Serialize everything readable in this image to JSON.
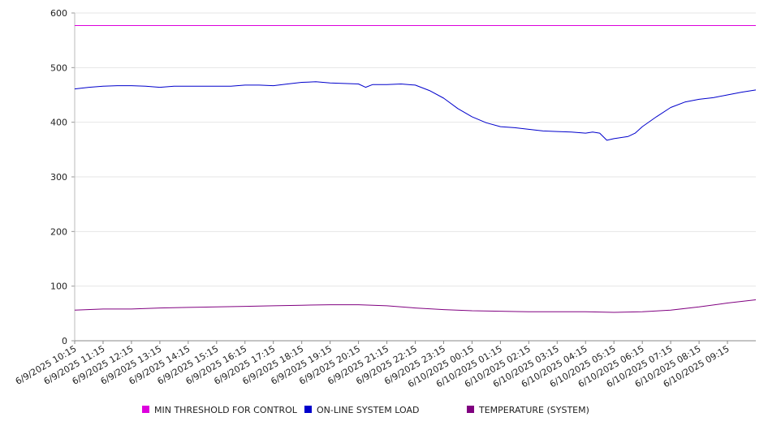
{
  "chart_data": {
    "type": "line",
    "title": "",
    "xlabel": "",
    "ylabel": "",
    "ylim": [
      0,
      600
    ],
    "yticks": [
      0,
      100,
      200,
      300,
      400,
      500,
      600
    ],
    "grid": "horizontal",
    "legend_position": "bottom",
    "xlim": [
      "6/9/2025 10:15",
      "6/10/2025 10:15"
    ],
    "x_tick_labels": [
      "6/9/2025 10:15",
      "6/9/2025 11:15",
      "6/9/2025 12:15",
      "6/9/2025 13:15",
      "6/9/2025 14:15",
      "6/9/2025 15:15",
      "6/9/2025 16:15",
      "6/9/2025 17:15",
      "6/9/2025 18:15",
      "6/9/2025 19:15",
      "6/9/2025 20:15",
      "6/9/2025 21:15",
      "6/9/2025 22:15",
      "6/9/2025 23:15",
      "6/10/2025 00:15",
      "6/10/2025 01:15",
      "6/10/2025 02:15",
      "6/10/2025 03:15",
      "6/10/2025 04:15",
      "6/10/2025 05:15",
      "6/10/2025 06:15",
      "6/10/2025 07:15",
      "6/10/2025 08:15",
      "6/10/2025 09:15"
    ],
    "series": [
      {
        "name": "MIN THRESHOLD FOR CONTROL",
        "color": "#dd00dd",
        "x": [
          "6/9/2025 10:15",
          "6/10/2025 10:15"
        ],
        "y": [
          577,
          577
        ]
      },
      {
        "name": "ON-LINE SYSTEM LOAD",
        "color": "#0000cc",
        "x": [
          "6/9/2025 10:15",
          "6/9/2025 10:45",
          "6/9/2025 11:15",
          "6/9/2025 11:45",
          "6/9/2025 12:15",
          "6/9/2025 12:45",
          "6/9/2025 13:15",
          "6/9/2025 13:45",
          "6/9/2025 14:15",
          "6/9/2025 14:45",
          "6/9/2025 15:15",
          "6/9/2025 15:45",
          "6/9/2025 16:15",
          "6/9/2025 16:45",
          "6/9/2025 17:15",
          "6/9/2025 17:45",
          "6/9/2025 18:15",
          "6/9/2025 18:45",
          "6/9/2025 19:15",
          "6/9/2025 19:45",
          "6/9/2025 20:15",
          "6/9/2025 20:30",
          "6/9/2025 20:45",
          "6/9/2025 21:15",
          "6/9/2025 21:45",
          "6/9/2025 22:15",
          "6/9/2025 22:45",
          "6/9/2025 23:15",
          "6/9/2025 23:45",
          "6/10/2025 00:15",
          "6/10/2025 00:45",
          "6/10/2025 01:15",
          "6/10/2025 01:45",
          "6/10/2025 02:15",
          "6/10/2025 02:45",
          "6/10/2025 03:15",
          "6/10/2025 03:45",
          "6/10/2025 04:15",
          "6/10/2025 04:30",
          "6/10/2025 04:45",
          "6/10/2025 05:00",
          "6/10/2025 05:15",
          "6/10/2025 05:45",
          "6/10/2025 06:00",
          "6/10/2025 06:15",
          "6/10/2025 06:45",
          "6/10/2025 07:15",
          "6/10/2025 07:45",
          "6/10/2025 08:15",
          "6/10/2025 08:45",
          "6/10/2025 09:15",
          "6/10/2025 09:45",
          "6/10/2025 10:15"
        ],
        "y": [
          461,
          464,
          466,
          467,
          467,
          466,
          464,
          466,
          466,
          466,
          466,
          466,
          468,
          468,
          467,
          470,
          473,
          474,
          472,
          471,
          470,
          464,
          469,
          469,
          470,
          468,
          458,
          444,
          425,
          410,
          399,
          392,
          390,
          387,
          384,
          383,
          382,
          380,
          382,
          380,
          367,
          370,
          374,
          380,
          392,
          410,
          427,
          437,
          442,
          445,
          450,
          455,
          459
        ]
      },
      {
        "name": "TEMPERATURE (SYSTEM)",
        "color": "#800080",
        "x": [
          "6/9/2025 10:15",
          "6/9/2025 11:15",
          "6/9/2025 12:15",
          "6/9/2025 13:15",
          "6/9/2025 14:15",
          "6/9/2025 15:15",
          "6/9/2025 16:15",
          "6/9/2025 17:15",
          "6/9/2025 18:15",
          "6/9/2025 19:15",
          "6/9/2025 20:15",
          "6/9/2025 21:15",
          "6/9/2025 22:15",
          "6/9/2025 23:15",
          "6/10/2025 00:15",
          "6/10/2025 01:15",
          "6/10/2025 02:15",
          "6/10/2025 03:15",
          "6/10/2025 04:15",
          "6/10/2025 05:15",
          "6/10/2025 06:15",
          "6/10/2025 07:15",
          "6/10/2025 08:15",
          "6/10/2025 09:15",
          "6/10/2025 10:15"
        ],
        "y": [
          56,
          58,
          58,
          60,
          61,
          62,
          63,
          64,
          65,
          66,
          66,
          64,
          60,
          57,
          55,
          54,
          53,
          53,
          53,
          52,
          53,
          56,
          62,
          69,
          75
        ]
      }
    ]
  }
}
